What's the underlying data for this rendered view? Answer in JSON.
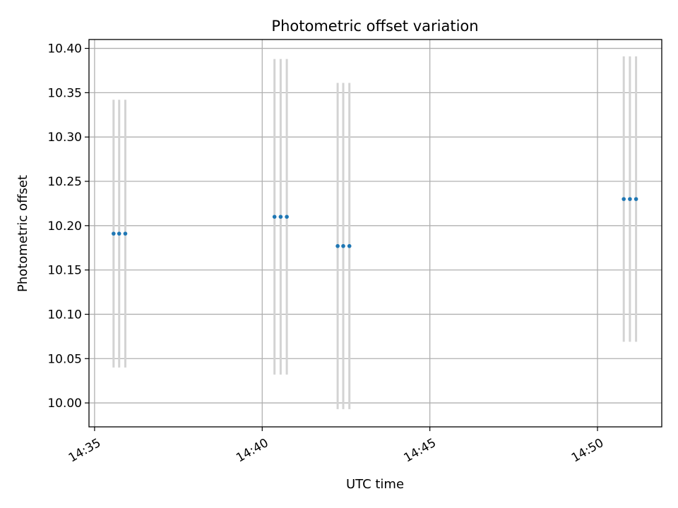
{
  "chart_data": {
    "type": "scatter",
    "title": "Photometric offset variation",
    "xlabel": "UTC time",
    "ylabel": "Photometric offset",
    "x_axis_kind": "time",
    "xlim": [
      "14:34:50",
      "14:51:55"
    ],
    "ylim": [
      9.973,
      10.41
    ],
    "x_ticks": [
      "14:35",
      "14:40",
      "14:45",
      "14:50"
    ],
    "y_ticks": [
      "10.00",
      "10.05",
      "10.10",
      "10.15",
      "10.20",
      "10.25",
      "10.30",
      "10.35",
      "10.40"
    ],
    "grid": true,
    "marker_color": "#1f77b4",
    "errorbar_color": "#d3d3d3",
    "points": [
      {
        "x": "14:35:34",
        "y": 10.191,
        "yerr": 0.151
      },
      {
        "x": "14:35:44",
        "y": 10.191,
        "yerr": 0.151
      },
      {
        "x": "14:35:55",
        "y": 10.191,
        "yerr": 0.151
      },
      {
        "x": "14:40:22",
        "y": 10.21,
        "yerr": 0.178
      },
      {
        "x": "14:40:33",
        "y": 10.21,
        "yerr": 0.178
      },
      {
        "x": "14:40:44",
        "y": 10.21,
        "yerr": 0.178
      },
      {
        "x": "14:42:15",
        "y": 10.177,
        "yerr": 0.184
      },
      {
        "x": "14:42:25",
        "y": 10.177,
        "yerr": 0.184
      },
      {
        "x": "14:42:36",
        "y": 10.177,
        "yerr": 0.184
      },
      {
        "x": "14:50:47",
        "y": 10.23,
        "yerr": 0.161
      },
      {
        "x": "14:50:58",
        "y": 10.23,
        "yerr": 0.161
      },
      {
        "x": "14:51:09",
        "y": 10.23,
        "yerr": 0.161
      }
    ]
  }
}
